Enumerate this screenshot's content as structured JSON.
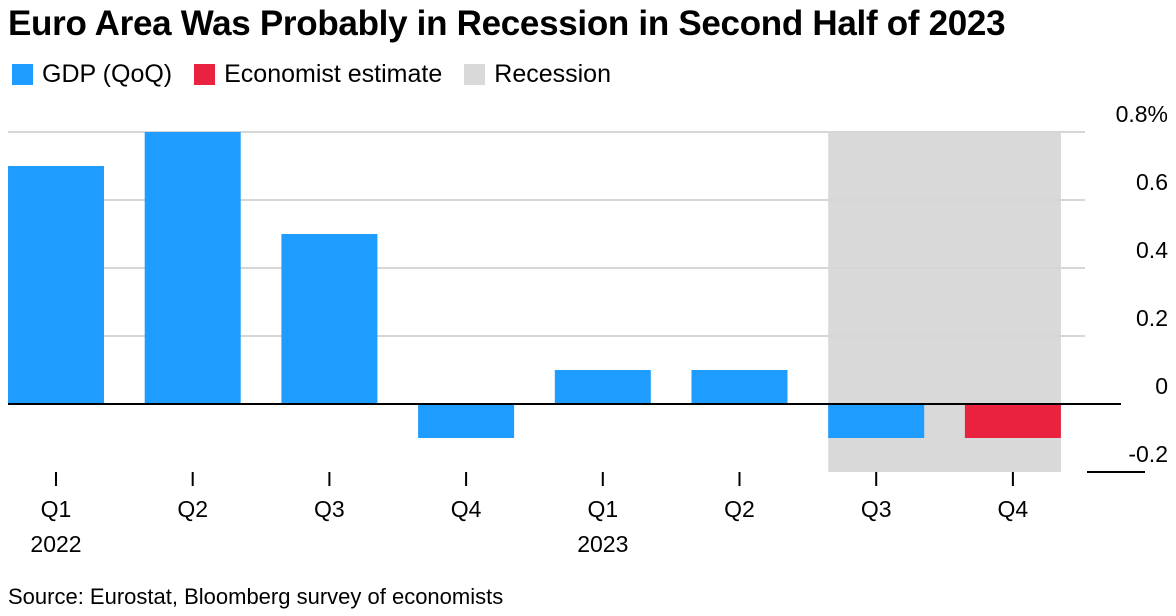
{
  "chart_data": {
    "type": "bar",
    "title": "Euro Area Was Probably in Recession in Second Half of 2023",
    "categories": [
      "Q1",
      "Q2",
      "Q3",
      "Q4",
      "Q1",
      "Q2",
      "Q3",
      "Q4"
    ],
    "year_labels": [
      "2022",
      "",
      "",
      "",
      "2023",
      "",
      "",
      ""
    ],
    "series": [
      {
        "name": "GDP (QoQ)",
        "color": "#1e9cff",
        "values": [
          0.7,
          0.8,
          0.5,
          -0.1,
          0.1,
          0.1,
          -0.1,
          null
        ]
      },
      {
        "name": "Economist estimate",
        "color": "#e8223f",
        "values": [
          null,
          null,
          null,
          null,
          null,
          null,
          null,
          -0.1
        ]
      }
    ],
    "recession": {
      "label": "Recession",
      "color": "#d9d9d9",
      "from_index": 6,
      "to_index": 7
    },
    "ylim": [
      -0.2,
      0.8
    ],
    "yticks": [
      {
        "value": 0.8,
        "label": "0.8%"
      },
      {
        "value": 0.6,
        "label": "0.6"
      },
      {
        "value": 0.4,
        "label": "0.4"
      },
      {
        "value": 0.2,
        "label": "0.2"
      },
      {
        "value": 0,
        "label": "0"
      },
      {
        "value": -0.2,
        "label": "-0.2"
      }
    ],
    "xlabel": "",
    "ylabel": "",
    "grid": true
  },
  "legend": [
    {
      "label": "GDP (QoQ)",
      "color": "#1e9cff"
    },
    {
      "label": "Economist estimate",
      "color": "#e8223f"
    },
    {
      "label": "Recession",
      "color": "#d9d9d9"
    }
  ],
  "source": "Source: Eurostat, Bloomberg survey of economists"
}
